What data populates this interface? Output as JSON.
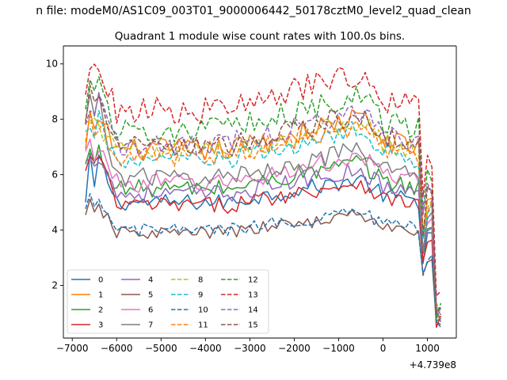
{
  "suptitle": "n file: modeM0/AS1C09_003T01_9000006442_50178cztM0_level2_quad_clean",
  "chart_data": {
    "type": "line",
    "title": "Quadrant 1 module wise count rates with 100.0s bins.",
    "xlabel": "",
    "ylabel": "",
    "offset_text": "+4.739e8",
    "xlim": [
      -7200,
      1650
    ],
    "ylim": [
      0.1,
      10.65
    ],
    "xticks": [
      -7000,
      -6000,
      -5000,
      -4000,
      -3000,
      -2000,
      -1000,
      0,
      1000
    ],
    "xtick_labels": [
      "−7000",
      "−6000",
      "−5000",
      "−4000",
      "−3000",
      "−2000",
      "−1000",
      "0",
      "1000"
    ],
    "yticks": [
      2,
      4,
      6,
      8,
      10
    ],
    "ytick_labels": [
      "2",
      "4",
      "6",
      "8",
      "10"
    ],
    "grid": false,
    "legend": {
      "location": "lower-left",
      "ncol": 4
    },
    "x": [
      -6700,
      -6600,
      -6500,
      -6400,
      -6300,
      -6200,
      -6100,
      -6000,
      -5900,
      -5800,
      -5700,
      -5600,
      -5500,
      -5400,
      -5300,
      -5200,
      -5100,
      -5000,
      -4900,
      -4800,
      -4700,
      -4600,
      -4500,
      -4400,
      -4300,
      -4200,
      -4100,
      -4000,
      -3900,
      -3800,
      -3700,
      -3600,
      -3500,
      -3400,
      -3300,
      -3200,
      -3100,
      -3000,
      -2900,
      -2800,
      -2700,
      -2600,
      -2500,
      -2400,
      -2300,
      -2200,
      -2100,
      -2000,
      -1900,
      -1800,
      -1700,
      -1600,
      -1500,
      -1400,
      -1300,
      -1200,
      -1100,
      -1000,
      -900,
      -800,
      -700,
      -600,
      -500,
      -400,
      -300,
      -200,
      -100,
      0,
      100,
      200,
      300,
      400,
      500,
      600,
      700,
      800,
      900,
      1000,
      1100,
      1200,
      1300
    ],
    "series": [
      {
        "name": "0",
        "color": "#1f77b4",
        "dash": "solid",
        "base": 5.0,
        "start": 4.3,
        "peak": 6.8,
        "end": 0.9
      },
      {
        "name": "1",
        "color": "#ff7f0e",
        "dash": "solid",
        "base": 6.9,
        "start": 6.3,
        "peak": 8.3,
        "end": 1.0
      },
      {
        "name": "2",
        "color": "#2ca02c",
        "dash": "solid",
        "base": 5.5,
        "start": 6.0,
        "peak": 7.0,
        "end": 0.8
      },
      {
        "name": "3",
        "color": "#d62728",
        "dash": "solid",
        "base": 4.9,
        "start": 5.7,
        "peak": 6.9,
        "end": 0.7
      },
      {
        "name": "4",
        "color": "#9467bd",
        "dash": "solid",
        "base": 5.3,
        "start": 6.1,
        "peak": 6.9,
        "end": 0.9
      },
      {
        "name": "5",
        "color": "#8c564b",
        "dash": "solid",
        "base": 3.9,
        "start": 4.2,
        "peak": 5.0,
        "end": 0.6
      },
      {
        "name": "6",
        "color": "#e377c2",
        "dash": "solid",
        "base": 5.7,
        "start": 6.4,
        "peak": 7.2,
        "end": 1.0
      },
      {
        "name": "7",
        "color": "#7f7f7f",
        "dash": "solid",
        "base": 5.9,
        "start": 7.2,
        "peak": 9.1,
        "end": 1.1
      },
      {
        "name": "8",
        "color": "#bcbd22",
        "dash": "dashed",
        "base": 6.8,
        "start": 7.5,
        "peak": 8.0,
        "end": 1.0
      },
      {
        "name": "9",
        "color": "#17becf",
        "dash": "dashed",
        "base": 6.5,
        "start": 6.9,
        "peak": 8.1,
        "end": 1.0
      },
      {
        "name": "10",
        "color": "#1f77b4",
        "dash": "dashed",
        "base": 4.0,
        "start": 4.3,
        "peak": 5.2,
        "end": 0.7
      },
      {
        "name": "11",
        "color": "#ff7f0e",
        "dash": "dashed",
        "base": 6.7,
        "start": 7.4,
        "peak": 8.0,
        "end": 1.0
      },
      {
        "name": "12",
        "color": "#2ca02c",
        "dash": "dashed",
        "base": 7.6,
        "start": 8.5,
        "peak": 9.5,
        "end": 1.2
      },
      {
        "name": "13",
        "color": "#d62728",
        "dash": "dashed",
        "base": 8.3,
        "start": 9.0,
        "peak": 10.1,
        "end": 1.3
      },
      {
        "name": "14",
        "color": "#9467bd",
        "dash": "dashed",
        "base": 7.1,
        "start": 7.9,
        "peak": 8.7,
        "end": 1.1
      },
      {
        "name": "15",
        "color": "#8c564b",
        "dash": "dashed",
        "base": 7.0,
        "start": 7.8,
        "peak": 9.0,
        "end": 1.1
      }
    ]
  }
}
